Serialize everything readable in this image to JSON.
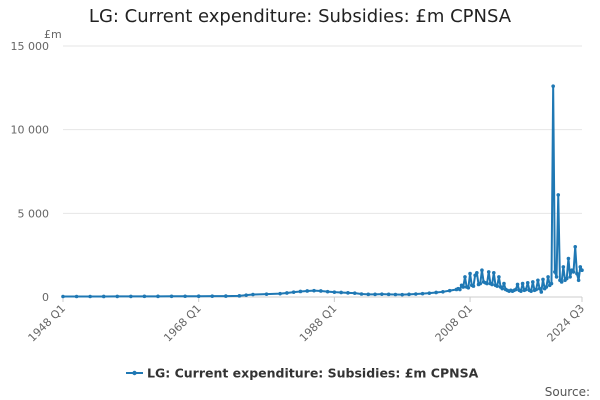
{
  "chart_data": {
    "type": "line",
    "title": "LG: Current expenditure: Subsidies: £m CPNSA",
    "ylabel": "£m",
    "xlabel": "",
    "ylim": [
      0,
      15000
    ],
    "y_ticks": [
      {
        "value": 0,
        "label": "0"
      },
      {
        "value": 5000,
        "label": "5 000"
      },
      {
        "value": 10000,
        "label": "10 000"
      },
      {
        "value": 15000,
        "label": "15 000"
      }
    ],
    "x_ticks": [
      {
        "value": 1948.0,
        "label": "1948 Q1"
      },
      {
        "value": 1968.0,
        "label": "1968 Q1"
      },
      {
        "value": 1988.0,
        "label": "1988 Q1"
      },
      {
        "value": 2008.0,
        "label": "2008 Q1"
      },
      {
        "value": 2024.5,
        "label": "2024 Q3"
      }
    ],
    "xlim": [
      1948.0,
      2024.5
    ],
    "grid": "horizontal",
    "legend": "bottom",
    "source_label": "Source:",
    "series": [
      {
        "name": "LG: Current expenditure: Subsidies: £m CPNSA",
        "color": "#1f78b4",
        "points": [
          [
            1948.0,
            30
          ],
          [
            1950.0,
            30
          ],
          [
            1952.0,
            30
          ],
          [
            1954.0,
            32
          ],
          [
            1956.0,
            35
          ],
          [
            1958.0,
            35
          ],
          [
            1960.0,
            38
          ],
          [
            1962.0,
            40
          ],
          [
            1964.0,
            42
          ],
          [
            1966.0,
            45
          ],
          [
            1968.0,
            48
          ],
          [
            1970.0,
            50
          ],
          [
            1972.0,
            55
          ],
          [
            1974.0,
            70
          ],
          [
            1975.0,
            110
          ],
          [
            1976.0,
            150
          ],
          [
            1978.0,
            170
          ],
          [
            1980.0,
            200
          ],
          [
            1981.0,
            240
          ],
          [
            1982.0,
            290
          ],
          [
            1983.0,
            330
          ],
          [
            1984.0,
            360
          ],
          [
            1985.0,
            380
          ],
          [
            1986.0,
            360
          ],
          [
            1987.0,
            320
          ],
          [
            1988.0,
            290
          ],
          [
            1989.0,
            270
          ],
          [
            1990.0,
            250
          ],
          [
            1991.0,
            230
          ],
          [
            1992.0,
            180
          ],
          [
            1993.0,
            160
          ],
          [
            1994.0,
            160
          ],
          [
            1995.0,
            170
          ],
          [
            1996.0,
            160
          ],
          [
            1997.0,
            150
          ],
          [
            1998.0,
            140
          ],
          [
            1999.0,
            160
          ],
          [
            2000.0,
            180
          ],
          [
            2001.0,
            200
          ],
          [
            2002.0,
            230
          ],
          [
            2003.0,
            270
          ],
          [
            2004.0,
            310
          ],
          [
            2005.0,
            380
          ],
          [
            2006.0,
            450
          ],
          [
            2006.25,
            500
          ],
          [
            2006.5,
            450
          ],
          [
            2006.75,
            700
          ],
          [
            2007.0,
            600
          ],
          [
            2007.25,
            1200
          ],
          [
            2007.5,
            600
          ],
          [
            2007.75,
            550
          ],
          [
            2008.0,
            1400
          ],
          [
            2008.25,
            700
          ],
          [
            2008.5,
            650
          ],
          [
            2008.75,
            1300
          ],
          [
            2009.0,
            1450
          ],
          [
            2009.25,
            750
          ],
          [
            2009.5,
            800
          ],
          [
            2009.75,
            1600
          ],
          [
            2010.0,
            900
          ],
          [
            2010.25,
            850
          ],
          [
            2010.5,
            800
          ],
          [
            2010.75,
            1500
          ],
          [
            2011.0,
            800
          ],
          [
            2011.25,
            750
          ],
          [
            2011.5,
            1450
          ],
          [
            2011.75,
            700
          ],
          [
            2012.0,
            650
          ],
          [
            2012.25,
            1200
          ],
          [
            2012.5,
            600
          ],
          [
            2012.75,
            500
          ],
          [
            2013.0,
            800
          ],
          [
            2013.25,
            450
          ],
          [
            2013.5,
            400
          ],
          [
            2013.75,
            350
          ],
          [
            2014.0,
            400
          ],
          [
            2014.25,
            350
          ],
          [
            2014.5,
            400
          ],
          [
            2014.75,
            450
          ],
          [
            2015.0,
            750
          ],
          [
            2015.25,
            400
          ],
          [
            2015.5,
            350
          ],
          [
            2015.75,
            800
          ],
          [
            2016.0,
            400
          ],
          [
            2016.25,
            450
          ],
          [
            2016.5,
            850
          ],
          [
            2016.75,
            400
          ],
          [
            2017.0,
            350
          ],
          [
            2017.25,
            900
          ],
          [
            2017.5,
            400
          ],
          [
            2017.75,
            450
          ],
          [
            2018.0,
            1000
          ],
          [
            2018.25,
            500
          ],
          [
            2018.5,
            300
          ],
          [
            2018.75,
            1050
          ],
          [
            2019.0,
            500
          ],
          [
            2019.25,
            600
          ],
          [
            2019.5,
            1200
          ],
          [
            2019.75,
            700
          ],
          [
            2020.0,
            800
          ],
          [
            2020.25,
            12600
          ],
          [
            2020.5,
            1500
          ],
          [
            2020.75,
            1200
          ],
          [
            2021.0,
            6100
          ],
          [
            2021.25,
            1000
          ],
          [
            2021.5,
            900
          ],
          [
            2021.75,
            1800
          ],
          [
            2022.0,
            1000
          ],
          [
            2022.25,
            1100
          ],
          [
            2022.5,
            2300
          ],
          [
            2022.75,
            1200
          ],
          [
            2023.0,
            1600
          ],
          [
            2023.25,
            1500
          ],
          [
            2023.5,
            3000
          ],
          [
            2023.75,
            1400
          ],
          [
            2024.0,
            1000
          ],
          [
            2024.25,
            1800
          ],
          [
            2024.5,
            1600
          ]
        ]
      }
    ]
  }
}
